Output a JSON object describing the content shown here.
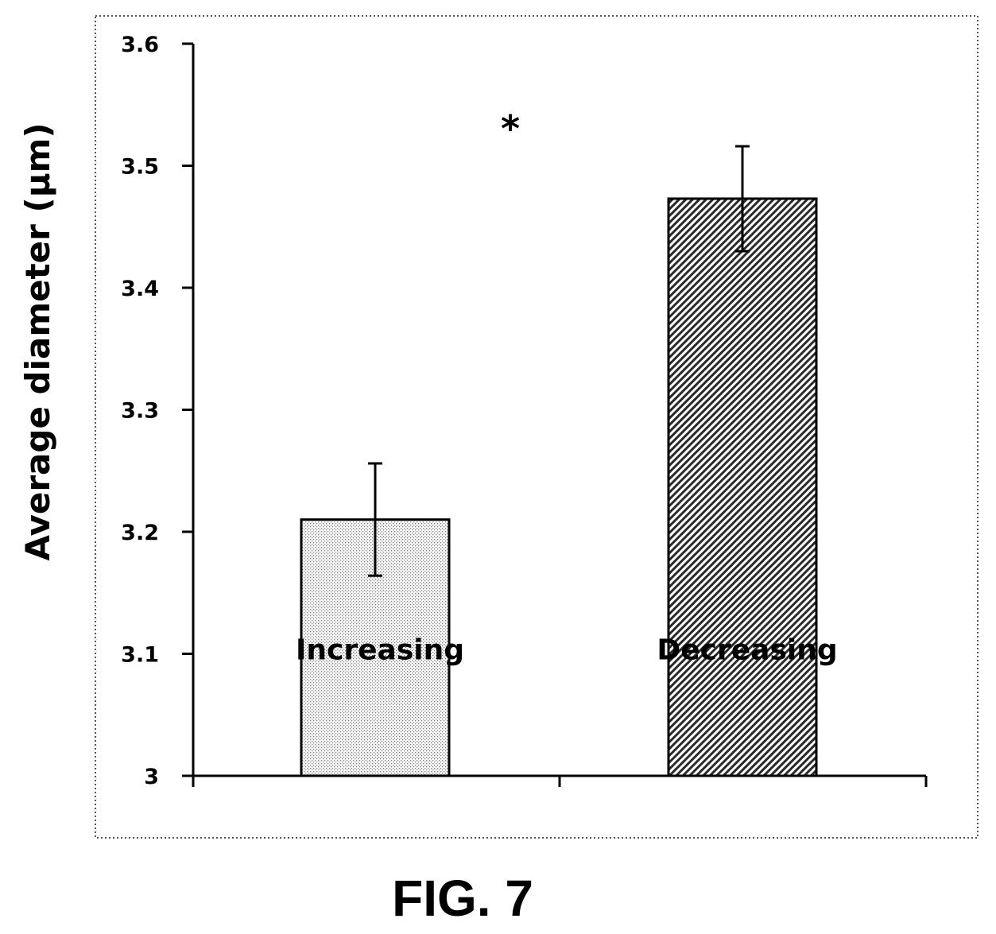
{
  "chart_data": {
    "type": "bar",
    "ylabel": "Average diameter (µm)",
    "xlabel": "",
    "ylim": [
      3.0,
      3.6
    ],
    "yticks": [
      "3",
      "3.1",
      "3.2",
      "3.3",
      "3.4",
      "3.5",
      "3.6"
    ],
    "categories": [
      "Increasing",
      "Decreasing"
    ],
    "values": [
      3.21,
      3.473
    ],
    "error_bars": [
      0.046,
      0.043
    ],
    "annotation": "*",
    "grid": false,
    "legend": "none"
  },
  "figure": {
    "caption": "FIG. 7"
  }
}
